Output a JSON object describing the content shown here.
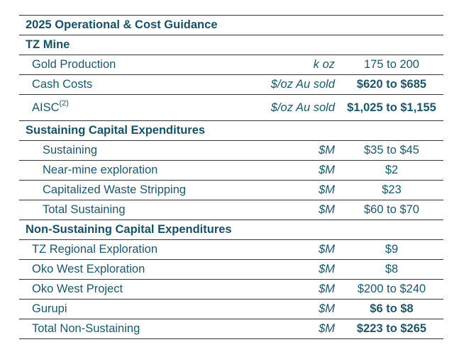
{
  "rows": [
    {
      "type": "section",
      "label": "2025 Operational & Cost Guidance"
    },
    {
      "type": "section",
      "label": "TZ Mine"
    },
    {
      "type": "item",
      "label": "Gold Production",
      "unit": "k oz",
      "value": "175 to 200",
      "bold": false,
      "indent": false
    },
    {
      "type": "item",
      "label": "Cash Costs",
      "unit": "$/oz Au sold",
      "value": "$620 to $685",
      "bold": true,
      "indent": false
    },
    {
      "type": "item",
      "label": "AISC",
      "sup": "(2)",
      "unit": "$/oz Au sold",
      "value": "$1,025 to $1,155",
      "bold": true,
      "indent": false,
      "tall": true
    },
    {
      "type": "section",
      "label": "Sustaining Capital Expenditures"
    },
    {
      "type": "item",
      "label": "Sustaining",
      "unit": "$M",
      "value": "$35 to $45",
      "bold": false,
      "indent": true
    },
    {
      "type": "item",
      "label": "Near-mine exploration",
      "unit": "$M",
      "value": "$2",
      "bold": false,
      "indent": true
    },
    {
      "type": "item",
      "label": "Capitalized Waste Stripping",
      "unit": "$M",
      "value": "$23",
      "bold": false,
      "indent": true
    },
    {
      "type": "item",
      "label": "Total Sustaining",
      "unit": "$M",
      "value": "$60 to $70",
      "bold": false,
      "indent": true
    },
    {
      "type": "section",
      "label": "Non-Sustaining Capital Expenditures"
    },
    {
      "type": "item",
      "label": "TZ Regional Exploration",
      "unit": "$M",
      "value": "$9",
      "bold": false,
      "indent": false
    },
    {
      "type": "item",
      "label": "Oko West Exploration",
      "unit": "$M",
      "value": "$8",
      "bold": false,
      "indent": false
    },
    {
      "type": "item",
      "label": "Oko West Project",
      "unit": "$M",
      "value": "$200 to $240",
      "bold": false,
      "indent": false
    },
    {
      "type": "item",
      "label": "Gurupi",
      "unit": "$M",
      "value": "$6 to $8",
      "bold": true,
      "indent": false
    },
    {
      "type": "item",
      "label": "Total Non-Sustaining",
      "unit": "$M",
      "value": "$223 to $265",
      "bold": true,
      "indent": false
    }
  ]
}
